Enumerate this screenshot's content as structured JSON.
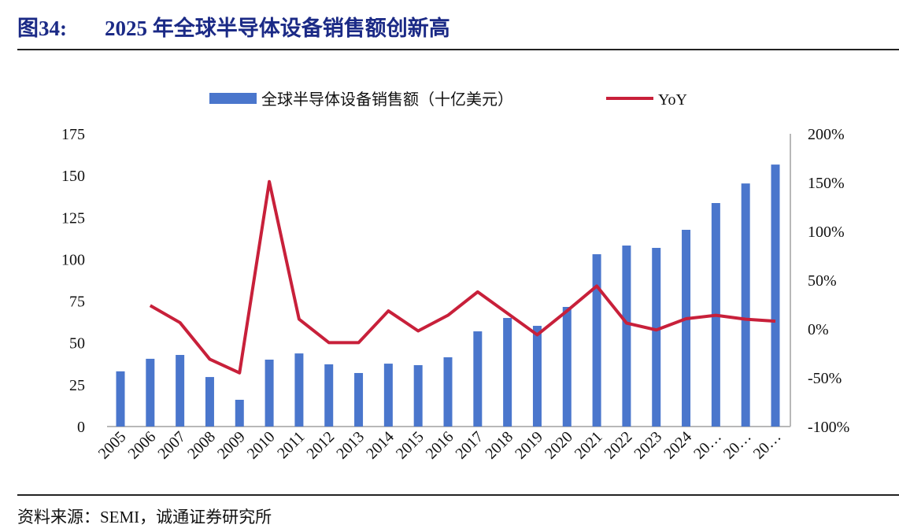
{
  "figure_label": "图34:",
  "title": "2025 年全球半导体设备销售额创新高",
  "source": "资料来源：SEMI，诚通证券研究所",
  "colors": {
    "bar": "#4a76cc",
    "line": "#c8203a",
    "title": "#1b2a86"
  },
  "chart_data": {
    "type": "bar+line",
    "legend_position": "top",
    "grid": false,
    "categories": [
      "2005",
      "2006",
      "2007",
      "2008",
      "2009",
      "2010",
      "2011",
      "2012",
      "2013",
      "2014",
      "2015",
      "2016",
      "2017",
      "2018",
      "2019",
      "2020",
      "2021",
      "2022",
      "2023",
      "2024",
      "20…",
      "20…",
      "20…"
    ],
    "y_left": {
      "range": [
        0,
        175
      ],
      "ticks": [
        "0",
        "25",
        "50",
        "75",
        "100",
        "125",
        "150",
        "175"
      ]
    },
    "y_right": {
      "range": [
        -100,
        200
      ],
      "ticks": [
        "-100%",
        "-50%",
        "0%",
        "50%",
        "100%",
        "150%",
        "200%"
      ]
    },
    "series": [
      {
        "name": "全球半导体设备销售额（十亿美元）",
        "type": "bar",
        "axis": "left",
        "values": [
          33,
          40.5,
          42.8,
          29.6,
          16,
          40,
          43.7,
          37.2,
          32,
          37.6,
          36.7,
          41.4,
          56.9,
          64.9,
          60.2,
          71.5,
          103,
          108.2,
          106.8,
          117.6,
          133.6,
          145.3,
          156.6
        ]
      },
      {
        "name": "YoY",
        "type": "line",
        "axis": "right",
        "values": [
          null,
          24,
          6.5,
          -31,
          -45,
          151,
          10,
          -14,
          -14,
          18.5,
          -2,
          14,
          38,
          16,
          -6,
          18.5,
          44,
          6,
          -1,
          10.5,
          14,
          10,
          8
        ]
      }
    ]
  }
}
